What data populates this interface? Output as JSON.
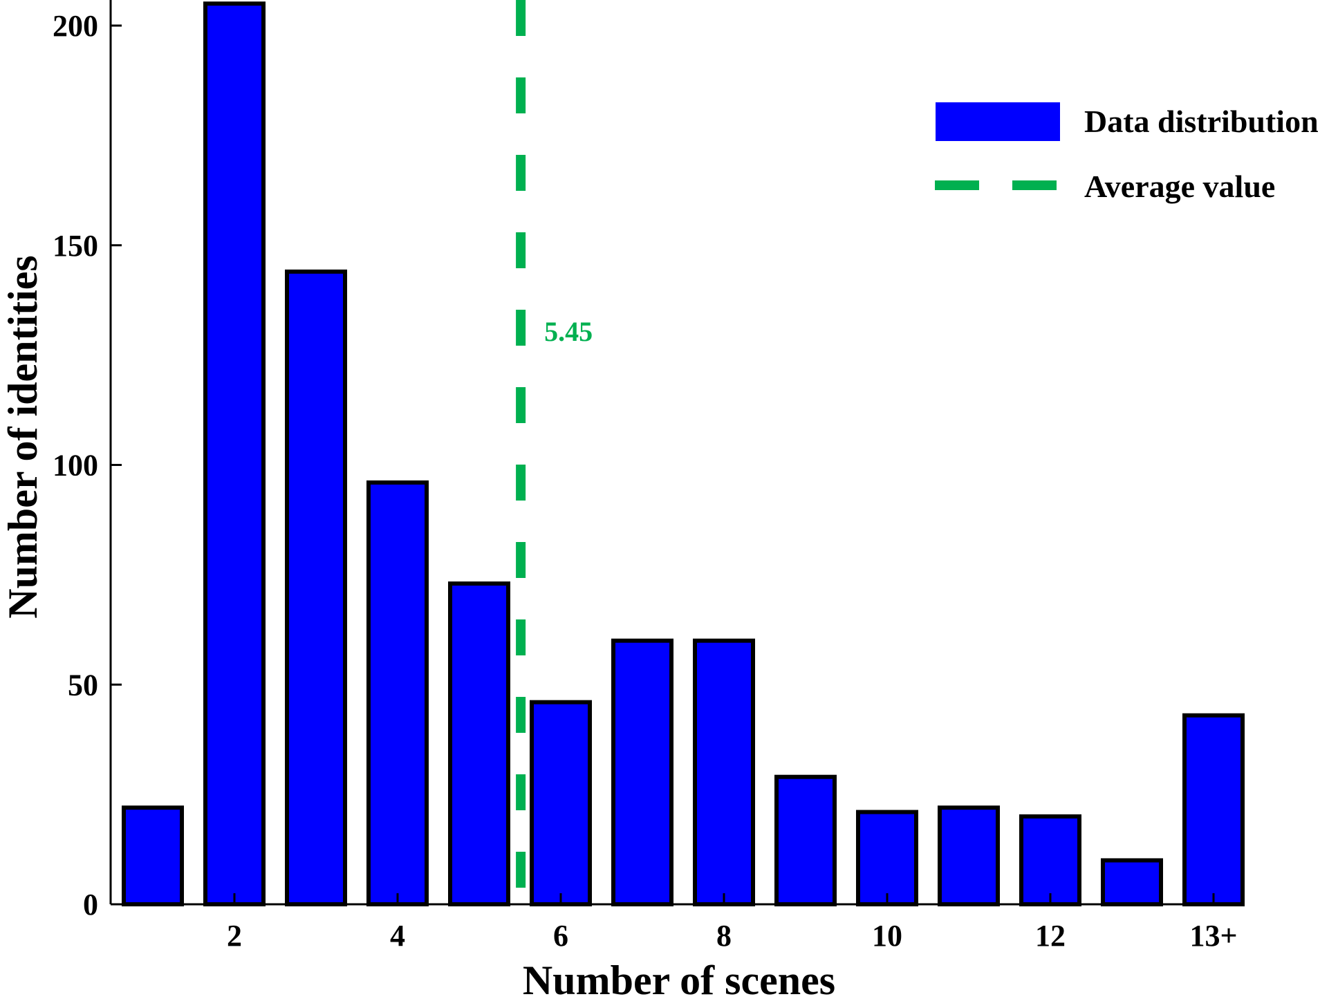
{
  "chart_data": {
    "type": "bar",
    "categories": [
      "1",
      "2",
      "3",
      "4",
      "5",
      "6",
      "7",
      "8",
      "9",
      "10",
      "11",
      "12",
      "13",
      "13+"
    ],
    "values": [
      22,
      205,
      144,
      96,
      73,
      46,
      60,
      60,
      29,
      21,
      22,
      20,
      10,
      43
    ],
    "xlabel": "Number of scenes",
    "ylabel": "Number of identities",
    "ylim": [
      0,
      250
    ],
    "yticks": [
      0,
      50,
      100,
      150,
      200
    ],
    "xtick_labels": [
      {
        "category": "2",
        "label": "2"
      },
      {
        "category": "4",
        "label": "4"
      },
      {
        "category": "6",
        "label": "6"
      },
      {
        "category": "8",
        "label": "8"
      },
      {
        "category": "10",
        "label": "10"
      },
      {
        "category": "12",
        "label": "12"
      },
      {
        "category": "13+",
        "label": "13+"
      }
    ],
    "average": {
      "value": 5.45,
      "label": "5.45"
    },
    "legend": {
      "position": "top-right",
      "entries": [
        {
          "name": "Data distribution",
          "kind": "bar"
        },
        {
          "name": "Average value",
          "kind": "dashed-line"
        }
      ]
    },
    "colors": {
      "bar_fill": "#0000ff",
      "bar_edge": "#000000",
      "average_line": "#00b050",
      "text": "#000000"
    },
    "grid": false
  }
}
